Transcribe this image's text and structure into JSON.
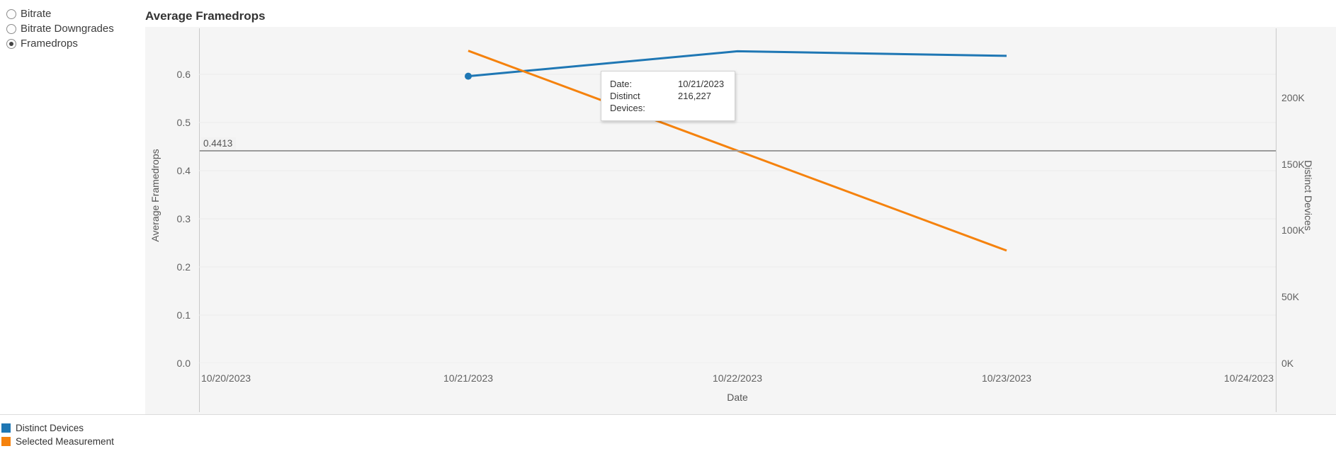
{
  "sidebar": {
    "options": [
      {
        "id": "bitrate",
        "label": "Bitrate",
        "selected": false
      },
      {
        "id": "bitrate-downgrades",
        "label": "Bitrate Downgrades",
        "selected": false
      },
      {
        "id": "framedrops",
        "label": "Framedrops",
        "selected": true
      }
    ]
  },
  "chart": {
    "title": "Average Framedrops",
    "tooltip": {
      "rows": [
        {
          "label": "Date:",
          "value": "10/21/2023"
        },
        {
          "label": "Distinct Devices:",
          "value": "216,227"
        }
      ]
    }
  },
  "chart_data": {
    "type": "line",
    "title": "Average Framedrops",
    "xlabel": "Date",
    "x_axis": {
      "categories": [
        "10/20/2023",
        "10/21/2023",
        "10/22/2023",
        "10/23/2023",
        "10/24/2023"
      ]
    },
    "left_axis": {
      "label": "Average Framedrops",
      "min": 0,
      "max": 0.6985,
      "ticks": [
        {
          "v": 0.0,
          "label": "0.0"
        },
        {
          "v": 0.1,
          "label": "0.1"
        },
        {
          "v": 0.2,
          "label": "0.2"
        },
        {
          "v": 0.3,
          "label": "0.3"
        },
        {
          "v": 0.4,
          "label": "0.4"
        },
        {
          "v": 0.5,
          "label": "0.5"
        },
        {
          "v": 0.6,
          "label": "0.6"
        }
      ]
    },
    "right_axis": {
      "label": "Distinct Devices",
      "min": 0,
      "max": 253333,
      "ticks": [
        {
          "v": 0,
          "label": "0K"
        },
        {
          "v": 50000,
          "label": "50K"
        },
        {
          "v": 100000,
          "label": "100K"
        },
        {
          "v": 150000,
          "label": "150K"
        },
        {
          "v": 200000,
          "label": "200K"
        }
      ]
    },
    "reference_line": {
      "axis": "left",
      "value": 0.4413,
      "label": "0.4413",
      "color": "#9b9b9b"
    },
    "series": [
      {
        "name": "Distinct Devices",
        "color": "#1f77b4",
        "axis": "right",
        "points": [
          {
            "x": "10/21/2023",
            "y": 216227
          },
          {
            "x": "10/22/2023",
            "y": 235000
          },
          {
            "x": "10/23/2023",
            "y": 231500
          }
        ],
        "marker_x": "10/21/2023"
      },
      {
        "name": "Selected Measurement",
        "color": "#f5820d",
        "axis": "left",
        "points": [
          {
            "x": "10/21/2023",
            "y": 0.649
          },
          {
            "x": "10/23/2023",
            "y": 0.234
          }
        ]
      }
    ],
    "legend": {
      "position": "bottom-left",
      "items": [
        {
          "label": "Distinct Devices",
          "color": "#1f77b4"
        },
        {
          "label": "Selected Measurement",
          "color": "#f5820d"
        }
      ]
    },
    "grid": true
  }
}
